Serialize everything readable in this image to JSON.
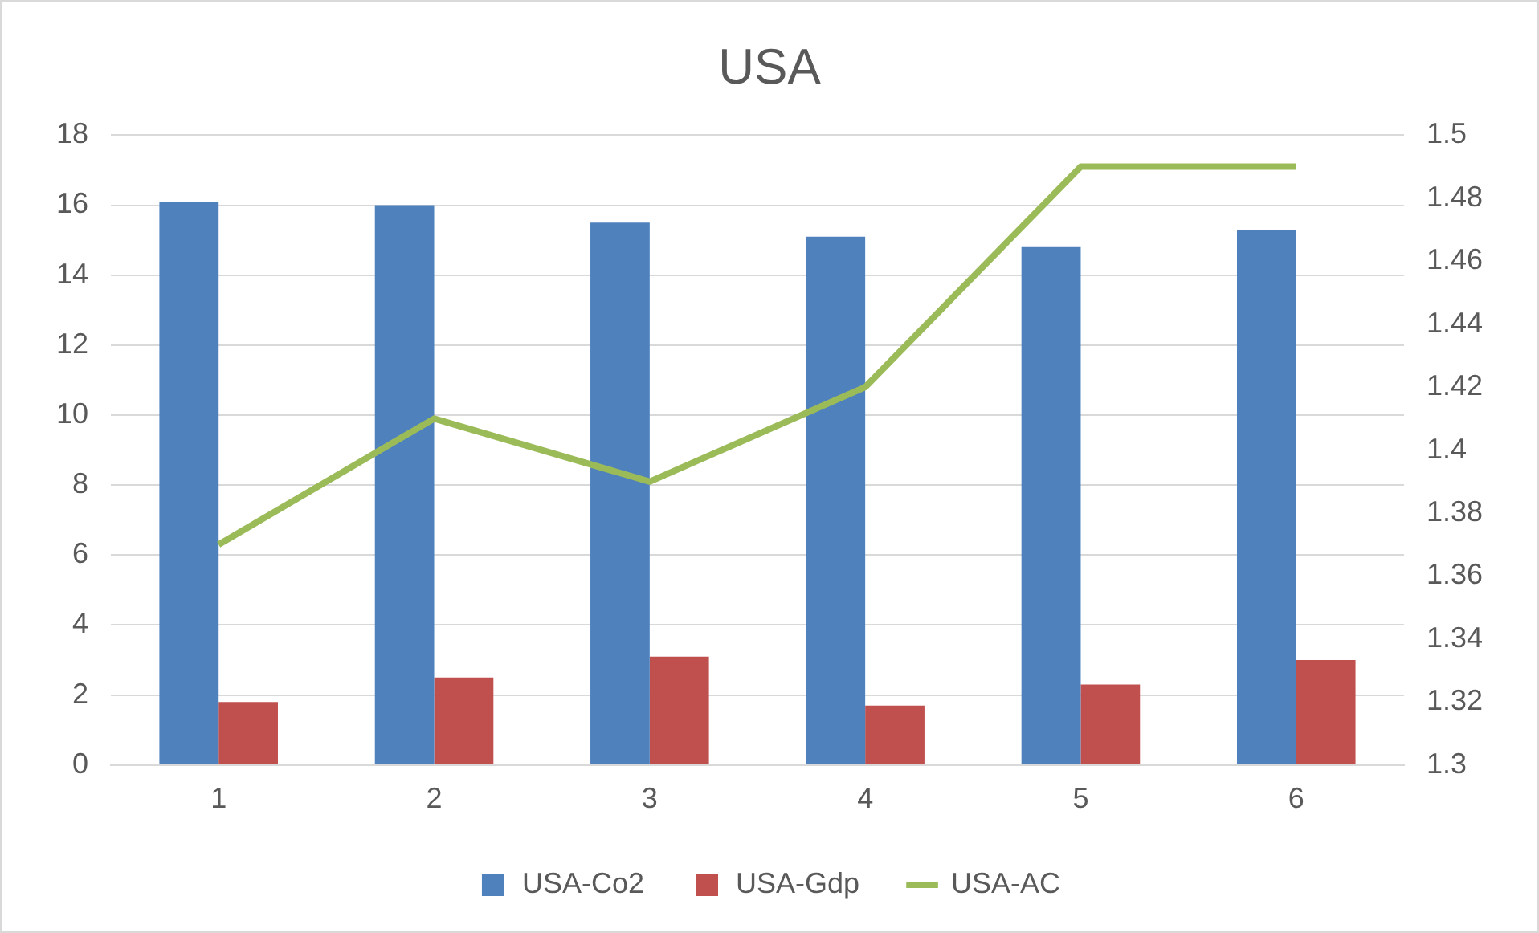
{
  "chart_data": {
    "type": "bar",
    "title": "USA",
    "categories": [
      "1",
      "2",
      "3",
      "4",
      "5",
      "6"
    ],
    "series": [
      {
        "name": "USA-Co2",
        "color": "#4f81bd",
        "values": [
          16.1,
          16.0,
          15.5,
          15.1,
          14.8,
          15.3
        ]
      },
      {
        "name": "USA-Gdp",
        "color": "#c0504d",
        "values": [
          1.8,
          2.5,
          3.1,
          1.7,
          2.3,
          3.0
        ]
      },
      {
        "name": "USA-AC",
        "type": "line",
        "axis": "y2",
        "color": "#9bbb59",
        "values": [
          1.37,
          1.41,
          1.39,
          1.42,
          1.49,
          1.49
        ]
      }
    ],
    "ylim": [
      0,
      18
    ],
    "yticks": [
      0,
      2,
      4,
      6,
      8,
      10,
      12,
      14,
      16,
      18
    ],
    "y2lim": [
      1.3,
      1.5
    ],
    "y2ticks": [
      1.3,
      1.32,
      1.34,
      1.36,
      1.38,
      1.4,
      1.42,
      1.44,
      1.46,
      1.48,
      1.5
    ],
    "grid": "y",
    "legend": "bottom",
    "marker": "none",
    "line_style": "solid"
  }
}
